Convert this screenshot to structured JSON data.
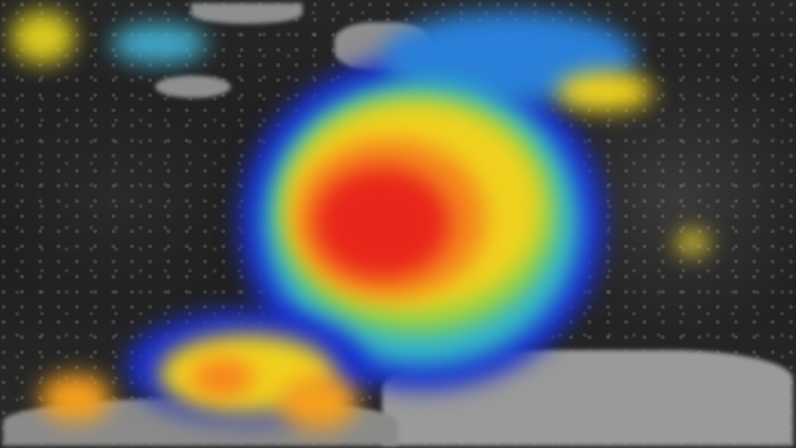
{
  "image": {
    "palette": {
      "ocean": "#1c1c1c",
      "land": "#8e8e8e",
      "cloud_top_cold": "#e8261a",
      "cloud_top_mid": "#f0d21e",
      "cloud_top_warm": "#33b5c8",
      "cloud_edge": "#1a2fd0"
    },
    "regions": [
      "storm-core",
      "storm-rainbands",
      "landmass-south",
      "landmass-north",
      "scattered-clouds"
    ]
  }
}
